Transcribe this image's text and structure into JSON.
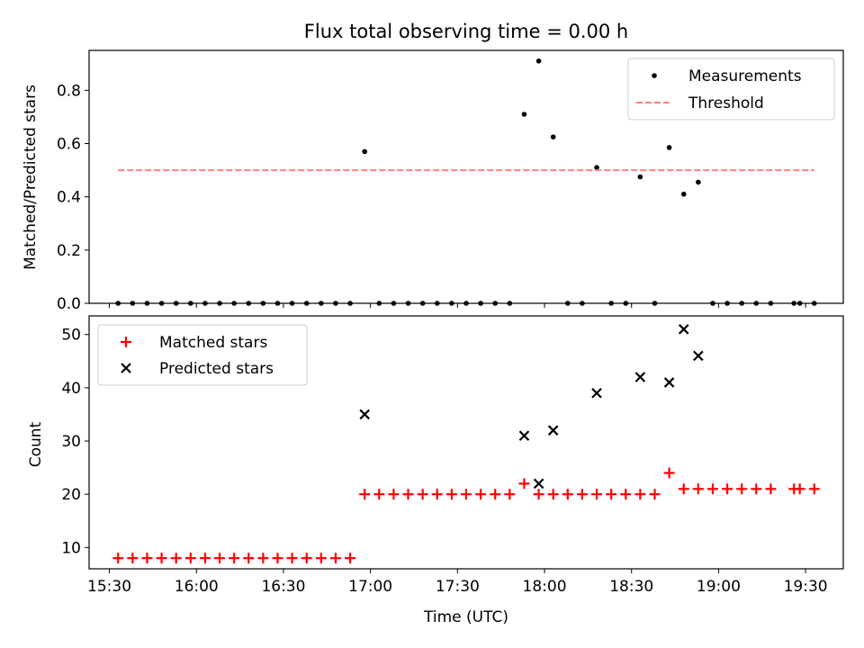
{
  "chart_data": {
    "type": "scatter",
    "title": "Flux total observing time = 0.00 h",
    "xlabel": "Time (UTC)",
    "x_ticks": [
      "15:30",
      "16:00",
      "16:30",
      "17:00",
      "17:30",
      "18:00",
      "18:30",
      "19:00",
      "19:30"
    ],
    "xlim": [
      "15:23",
      "19:43"
    ],
    "panels": [
      {
        "name": "ratio",
        "ylabel": "Matched/Predicted stars",
        "ylim": [
          0,
          0.95
        ],
        "y_ticks": [
          "0.0",
          "0.2",
          "0.4",
          "0.6",
          "0.8"
        ],
        "legend": "top-right",
        "series": [
          {
            "name": "Measurements",
            "marker": "dot",
            "color": "#000000",
            "x": [
              "15:33",
              "15:38",
              "15:43",
              "15:48",
              "15:53",
              "15:58",
              "16:03",
              "16:08",
              "16:13",
              "16:18",
              "16:23",
              "16:28",
              "16:33",
              "16:38",
              "16:43",
              "16:48",
              "16:53",
              "16:58",
              "17:03",
              "17:08",
              "17:13",
              "17:18",
              "17:23",
              "17:28",
              "17:33",
              "17:38",
              "17:43",
              "17:48",
              "17:53",
              "17:58",
              "18:03",
              "18:08",
              "18:13",
              "18:18",
              "18:23",
              "18:28",
              "18:33",
              "18:38",
              "18:43",
              "18:48",
              "18:53",
              "18:58",
              "19:03",
              "19:08",
              "19:13",
              "19:18",
              "19:26",
              "19:28",
              "19:33"
            ],
            "y": [
              0,
              0,
              0,
              0,
              0,
              0,
              0,
              0,
              0,
              0,
              0,
              0,
              0,
              0,
              0,
              0,
              0,
              0.57,
              0,
              0,
              0,
              0,
              0,
              0,
              0,
              0,
              0,
              0,
              0.71,
              0.91,
              0.625,
              0,
              0,
              0.51,
              0,
              0,
              0.475,
              0,
              0.585,
              0.41,
              0.455,
              0,
              0,
              0,
              0,
              0,
              0,
              0,
              0
            ]
          },
          {
            "name": "Threshold",
            "style": "dashed",
            "color": "#ff7f7f",
            "x": [
              "15:33",
              "19:33"
            ],
            "y": [
              0.5,
              0.5
            ]
          }
        ]
      },
      {
        "name": "count",
        "ylabel": "Count",
        "ylim": [
          6,
          53.5
        ],
        "y_ticks": [
          "10",
          "20",
          "30",
          "40",
          "50"
        ],
        "legend": "top-left",
        "series": [
          {
            "name": "Matched stars",
            "marker": "plus",
            "color": "#ff0000",
            "x": [
              "15:33",
              "15:38",
              "15:43",
              "15:48",
              "15:53",
              "15:58",
              "16:03",
              "16:08",
              "16:13",
              "16:18",
              "16:23",
              "16:28",
              "16:33",
              "16:38",
              "16:43",
              "16:48",
              "16:53",
              "16:58",
              "17:03",
              "17:08",
              "17:13",
              "17:18",
              "17:23",
              "17:28",
              "17:33",
              "17:38",
              "17:43",
              "17:48",
              "17:53",
              "17:58",
              "18:03",
              "18:08",
              "18:13",
              "18:18",
              "18:23",
              "18:28",
              "18:33",
              "18:38",
              "18:43",
              "18:48",
              "18:53",
              "18:58",
              "19:03",
              "19:08",
              "19:13",
              "19:18",
              "19:26",
              "19:28",
              "19:33"
            ],
            "y": [
              8,
              8,
              8,
              8,
              8,
              8,
              8,
              8,
              8,
              8,
              8,
              8,
              8,
              8,
              8,
              8,
              8,
              20,
              20,
              20,
              20,
              20,
              20,
              20,
              20,
              20,
              20,
              20,
              22,
              20,
              20,
              20,
              20,
              20,
              20,
              20,
              20,
              20,
              24,
              21,
              21,
              21,
              21,
              21,
              21,
              21,
              21,
              21,
              21
            ]
          },
          {
            "name": "Predicted stars",
            "marker": "x",
            "color": "#000000",
            "x": [
              "16:58",
              "17:53",
              "17:58",
              "18:03",
              "18:18",
              "18:33",
              "18:43",
              "18:48",
              "18:53"
            ],
            "y": [
              35,
              31,
              22,
              32,
              39,
              42,
              41,
              51,
              46
            ]
          }
        ]
      }
    ]
  }
}
